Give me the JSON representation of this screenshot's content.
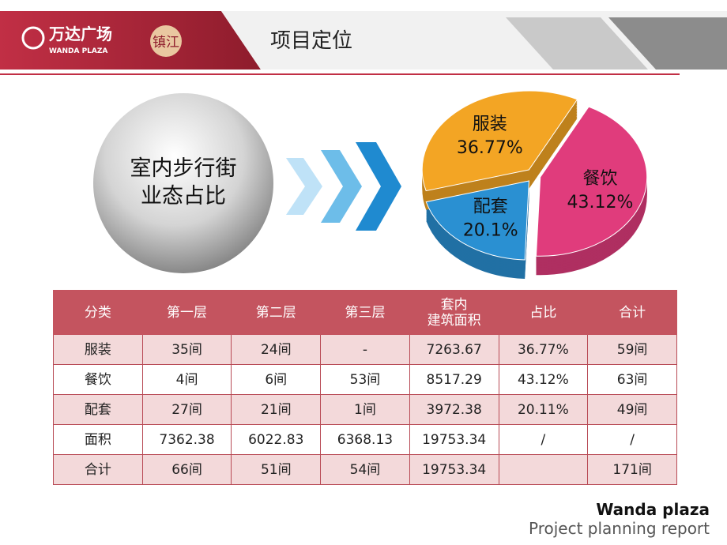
{
  "header": {
    "logo": "万达广场",
    "logo_sub": "WANDA PLAZA",
    "city": "镇江",
    "title": "项目定位"
  },
  "bubble": {
    "lines": [
      "室内步行街",
      "业态占比"
    ]
  },
  "chart_data": {
    "type": "pie",
    "categories": [
      "餐饮",
      "配套",
      "服装"
    ],
    "values": [
      43.12,
      20.1,
      36.77
    ],
    "value_labels": [
      "43.12%",
      "20.1%",
      "36.77%"
    ],
    "colors": [
      "#e03c7c",
      "#2a90d2",
      "#f3a524"
    ]
  },
  "table": {
    "header": [
      "分类",
      "第一层",
      "第二层",
      "第三层",
      "套内\n建筑面积",
      "占比",
      "合计"
    ],
    "rows": [
      [
        "服装",
        "35间",
        "24间",
        "-",
        "7263.67",
        "36.77%",
        "59间"
      ],
      [
        "餐饮",
        "4间",
        "6间",
        "53间",
        "8517.29",
        "43.12%",
        "63间"
      ],
      [
        "配套",
        "27间",
        "21间",
        "1间",
        "3972.38",
        "20.11%",
        "49间"
      ],
      [
        "面积",
        "7362.38",
        "6022.83",
        "6368.13",
        "19753.34",
        "/",
        "/"
      ],
      [
        "合计",
        "66间",
        "51间",
        "54间",
        "19753.34",
        null,
        "171间"
      ]
    ]
  },
  "footer": {
    "brand": "Wanda plaza",
    "subtitle": "Project planning report"
  }
}
